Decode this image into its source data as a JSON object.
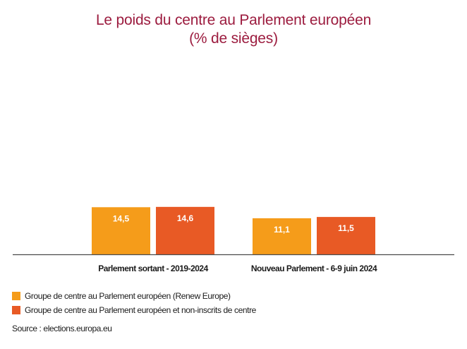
{
  "chart_data": {
    "type": "bar",
    "title": "Le poids du centre au Parlement européen",
    "subtitle": "(% de sièges)",
    "categories": [
      "Parlement sortant - 2019-2024",
      "Nouveau Parlement - 6-9 juin 2024"
    ],
    "series": [
      {
        "name": "Groupe de centre au Parlement européen (Renew Europe)",
        "color": "#f59c1a",
        "values": [
          14.5,
          11.1
        ],
        "labels": [
          "14,5",
          "11,1"
        ]
      },
      {
        "name": "Groupe de centre au Parlement européen et non-inscrits de centre",
        "color": "#e85a25",
        "values": [
          14.6,
          11.5
        ],
        "labels": [
          "14,6",
          "11,5"
        ]
      }
    ],
    "xlabel": "",
    "ylabel": "",
    "ylim": [
      0,
      60
    ],
    "grid": false,
    "legend_position": "bottom-left",
    "source": "Source : elections.europa.eu"
  }
}
